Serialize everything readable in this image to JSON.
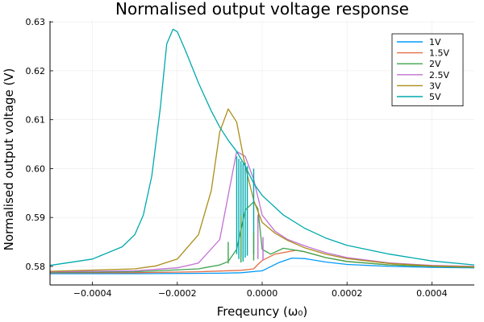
{
  "chart_data": {
    "type": "line",
    "title": "Normalised output voltage response",
    "xlabel": "Freqeuncy (ω₀)",
    "ylabel": "Normalised output voltage (V)",
    "xlim": [
      -0.0005,
      0.0005
    ],
    "ylim": [
      0.5762,
      0.6302
    ],
    "grid": true,
    "legend_position": "top-right",
    "x_ticks": [
      -0.0004,
      -0.0002,
      0.0,
      0.0002,
      0.0004
    ],
    "x_tick_labels": [
      "−0.0004",
      "−0.0002",
      "0.0000",
      "0.0002",
      "0.0004"
    ],
    "y_ticks": [
      0.58,
      0.59,
      0.6,
      0.61,
      0.62,
      0.63
    ],
    "y_tick_labels": [
      "0.58",
      "0.59",
      "0.60",
      "0.61",
      "0.62",
      "0.63"
    ],
    "series": [
      {
        "name": "1V",
        "color": "#009AFA",
        "x": [
          -0.0005,
          -0.0003,
          -0.0001,
          -5e-05,
          0.0,
          4e-05,
          7e-05,
          0.0001,
          0.00015,
          0.0002,
          0.0003,
          0.0004,
          0.0005
        ],
        "y": [
          0.5785,
          0.5785,
          0.5786,
          0.5787,
          0.5791,
          0.5808,
          0.5817,
          0.5816,
          0.5809,
          0.5804,
          0.58,
          0.5798,
          0.5797
        ]
      },
      {
        "name": "1.5V",
        "color": "#E36F47",
        "x": [
          -0.0005,
          -0.0003,
          -0.00015,
          -5e-05,
          -2e-05,
          -1e-05,
          0.0,
          3e-05,
          8e-05,
          0.0001,
          0.00015,
          0.0002,
          0.0003,
          0.0004,
          0.0005
        ],
        "y": [
          0.5787,
          0.5787,
          0.5789,
          0.5792,
          0.5795,
          0.5804,
          0.5812,
          0.5825,
          0.5833,
          0.583,
          0.5818,
          0.581,
          0.5803,
          0.58,
          0.5798
        ]
      },
      {
        "name": "2V",
        "color": "#3EA44E",
        "x": [
          -0.0005,
          -0.0003,
          -0.00015,
          -0.0001,
          -8e-05,
          -6e-05,
          -4e-05,
          -2e-05,
          -1e-05,
          0.0,
          2e-05,
          5e-05,
          0.0001,
          0.00015,
          0.0002,
          0.0003,
          0.0004,
          0.0005
        ],
        "y": [
          0.5788,
          0.5789,
          0.5795,
          0.5803,
          0.581,
          0.5835,
          0.5915,
          0.5932,
          0.5918,
          0.5835,
          0.5825,
          0.5837,
          0.583,
          0.5818,
          0.581,
          0.5803,
          0.58,
          0.5798
        ]
      },
      {
        "name": "2.5V",
        "color": "#C270D2",
        "x": [
          -0.0005,
          -0.0003,
          -0.0002,
          -0.00015,
          -0.0001,
          -8e-05,
          -6e-05,
          -4e-05,
          -2e-05,
          0.0,
          3e-05,
          6e-05,
          0.0001,
          0.00015,
          0.0002,
          0.0003,
          0.0004,
          0.0005
        ],
        "y": [
          0.5789,
          0.5791,
          0.5797,
          0.5807,
          0.5855,
          0.5945,
          0.6035,
          0.6025,
          0.5978,
          0.5905,
          0.5872,
          0.5855,
          0.5842,
          0.5828,
          0.5818,
          0.5807,
          0.5802,
          0.58
        ]
      },
      {
        "name": "3V",
        "color": "#AC8D18",
        "x": [
          -0.0005,
          -0.0003,
          -0.00025,
          -0.0002,
          -0.00015,
          -0.00012,
          -0.0001,
          -8e-05,
          -6e-05,
          -4e-05,
          -2e-05,
          0.0,
          3e-05,
          6e-05,
          0.0001,
          0.00015,
          0.0002,
          0.0003,
          0.0004,
          0.0005
        ],
        "y": [
          0.579,
          0.5795,
          0.5801,
          0.5815,
          0.5865,
          0.5955,
          0.6075,
          0.6122,
          0.6095,
          0.6005,
          0.5935,
          0.589,
          0.5868,
          0.5853,
          0.5838,
          0.5825,
          0.5816,
          0.5806,
          0.5801,
          0.5799
        ]
      },
      {
        "name": "5V",
        "color": "#00A9AD",
        "x": [
          -0.0005,
          -0.0004,
          -0.00033,
          -0.0003,
          -0.00028,
          -0.00026,
          -0.00024,
          -0.000225,
          -0.00021,
          -0.0002,
          -0.00018,
          -0.00015,
          -0.00012,
          -0.0001,
          -8e-05,
          -6e-05,
          -4e-05,
          -2e-05,
          0.0,
          5e-05,
          0.0001,
          0.00015,
          0.0002,
          0.0003,
          0.0004,
          0.0005
        ],
        "y": [
          0.5802,
          0.5815,
          0.584,
          0.5865,
          0.5905,
          0.5985,
          0.6125,
          0.6255,
          0.6285,
          0.628,
          0.624,
          0.6175,
          0.6118,
          0.6085,
          0.6058,
          0.6035,
          0.6005,
          0.597,
          0.5945,
          0.5905,
          0.5878,
          0.5858,
          0.5843,
          0.5825,
          0.5811,
          0.5803
        ]
      }
    ],
    "spikes": [
      {
        "color": "#00A9AD",
        "x": [
          -6e-05,
          -5.5e-05,
          -5e-05,
          -4.5e-05,
          -4e-05,
          -3.5e-05,
          -2e-05
        ],
        "y_low": [
          0.5825,
          0.5815,
          0.582,
          0.581,
          0.5818,
          0.5822,
          0.5825
        ],
        "y_high": [
          0.6025,
          0.602,
          0.6015,
          0.601,
          0.6012,
          0.6005,
          0.6
        ]
      },
      {
        "color": "#3EA44E",
        "x": [
          -8e-05,
          -5e-05,
          -2e-05
        ],
        "y_low": [
          0.5806,
          0.5808,
          0.5812
        ],
        "y_high": [
          0.585,
          0.5905,
          0.587
        ]
      },
      {
        "color": "#C270D2",
        "x": [
          -1e-05,
          2e-06
        ],
        "y_low": [
          0.5815,
          0.5812
        ],
        "y_high": [
          0.5905,
          0.586
        ]
      }
    ]
  }
}
